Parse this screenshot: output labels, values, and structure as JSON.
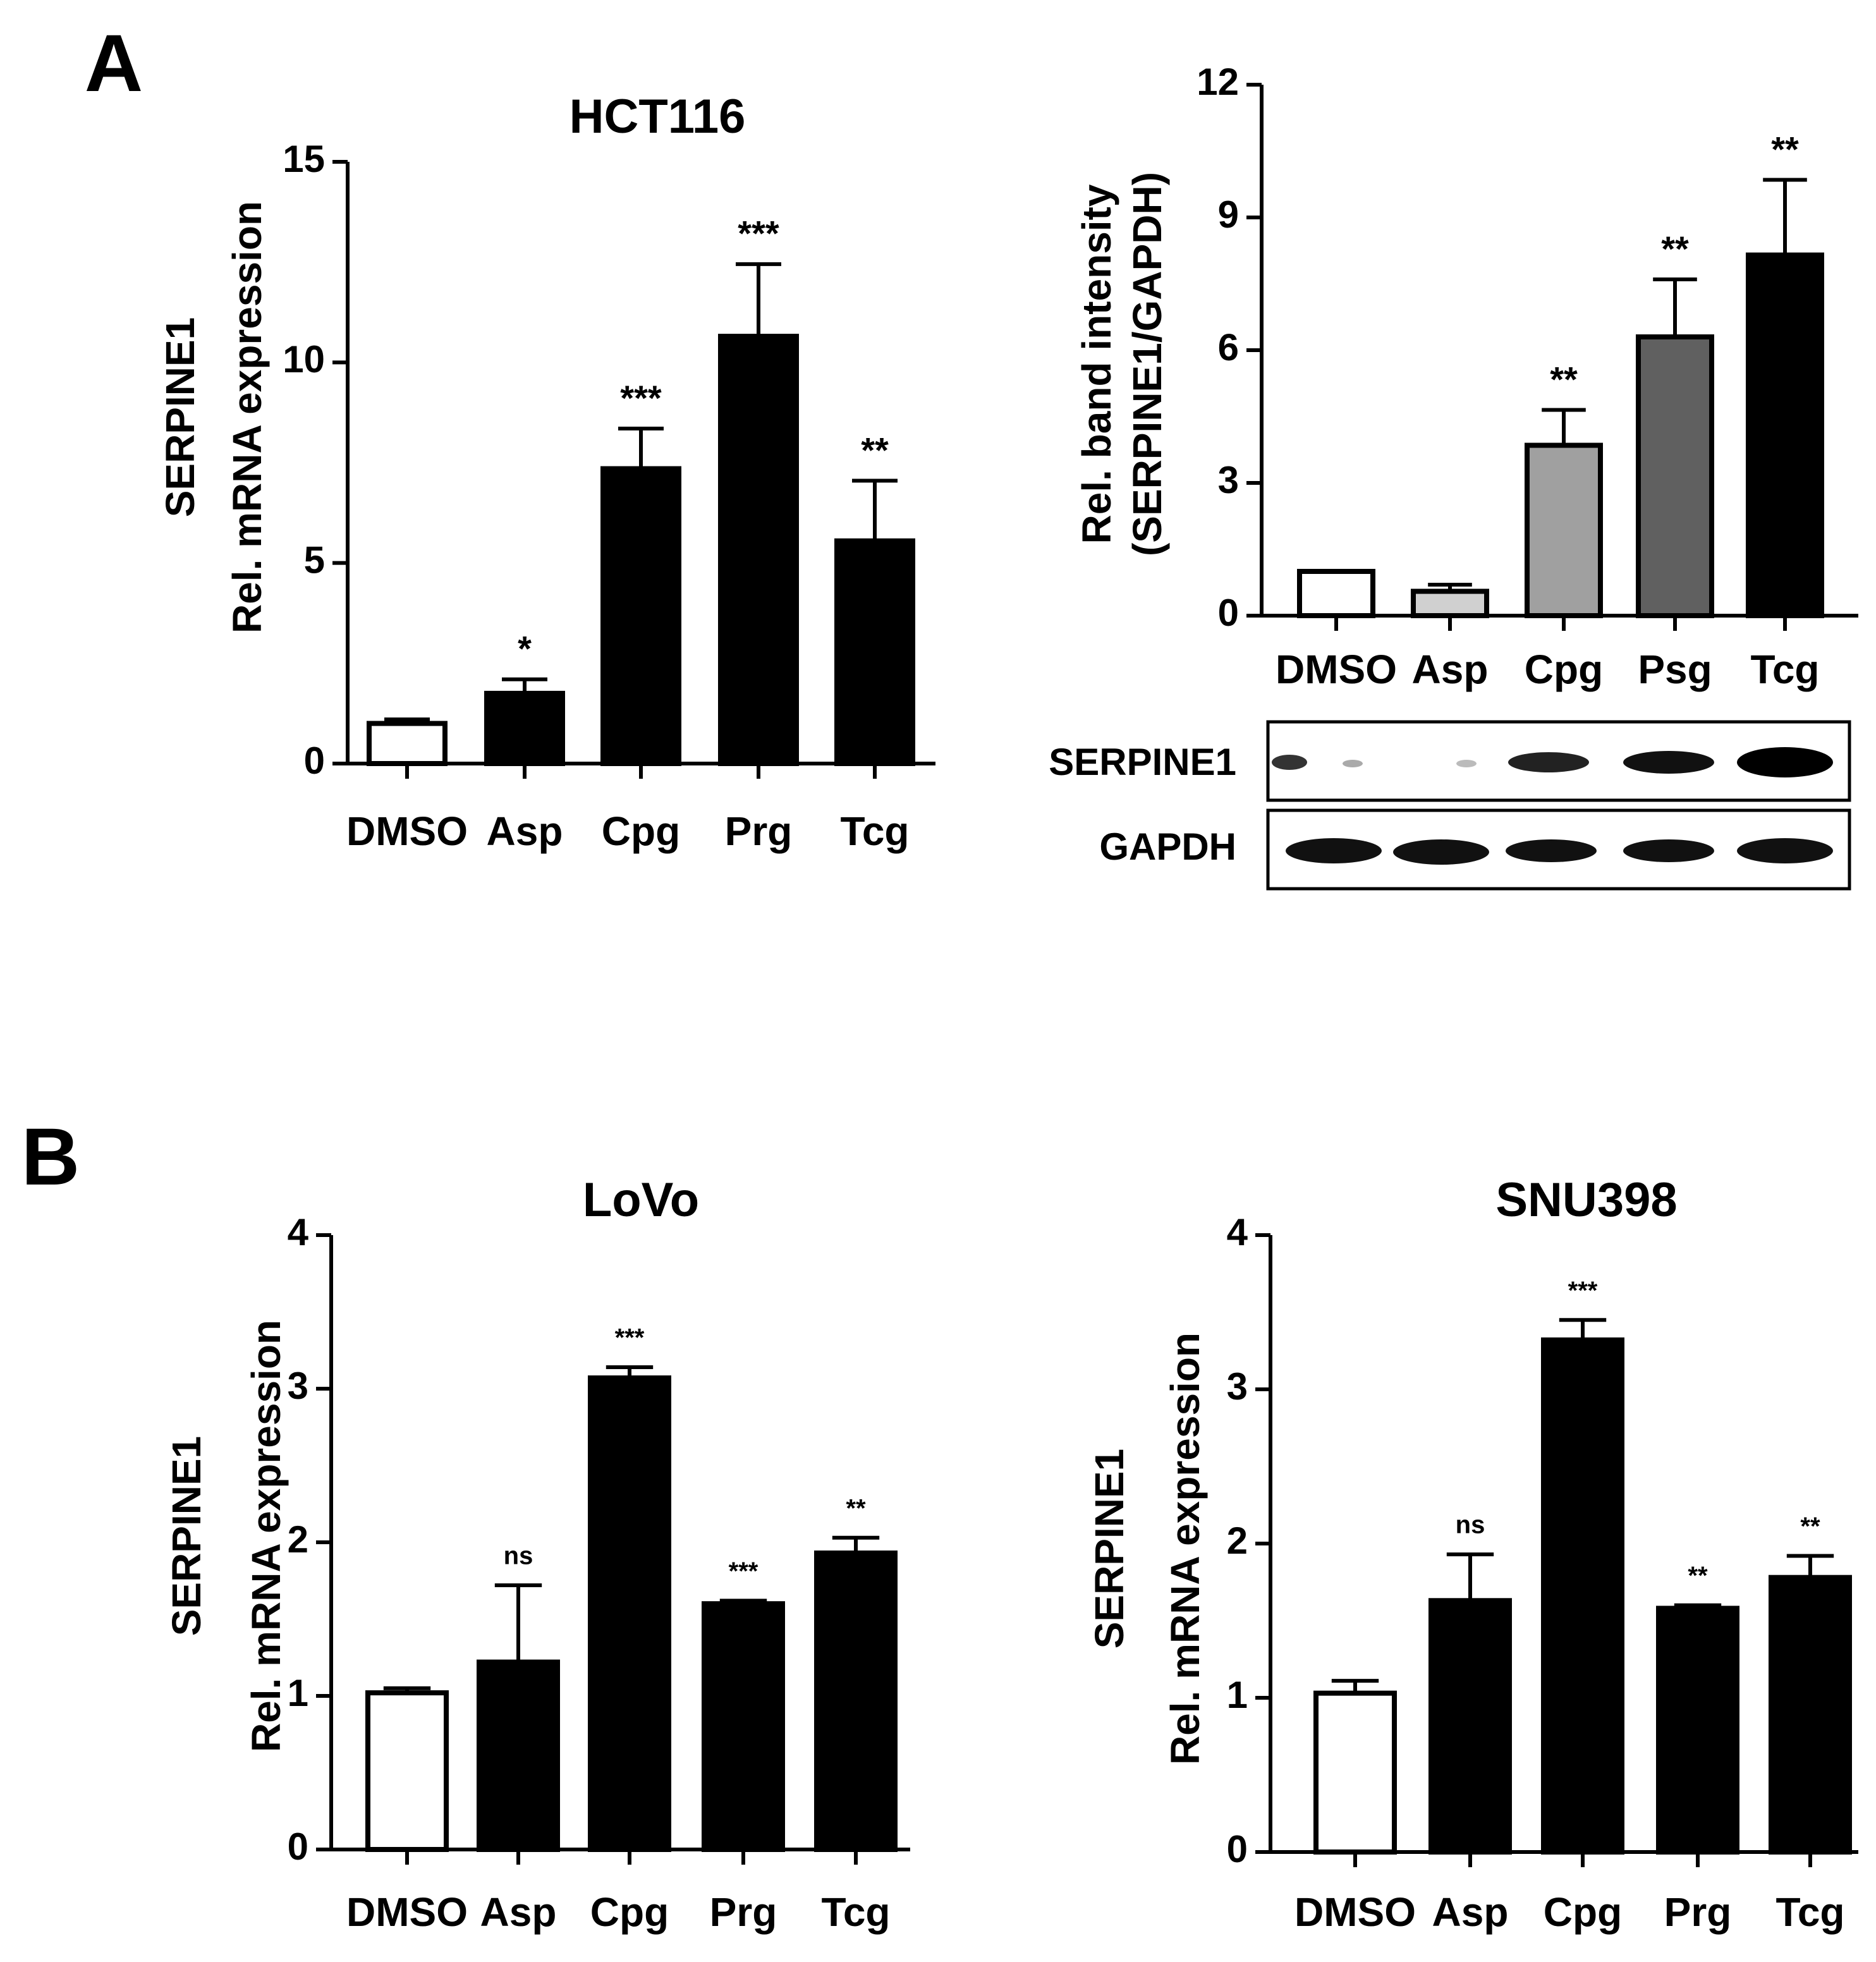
{
  "panels": [
    "A",
    "B"
  ],
  "blot_labels": [
    "SERPINE1",
    "GAPDH"
  ],
  "chart_data": [
    {
      "type": "bar",
      "title": "HCT116",
      "ylabel": [
        "SERPINE1",
        "Rel. mRNA expression"
      ],
      "categories": [
        "DMSO",
        "Asp",
        "Cpg",
        "Prg",
        "Tcg"
      ],
      "values": [
        1.0,
        1.75,
        7.35,
        10.65,
        5.55
      ],
      "errors": [
        0.1,
        0.35,
        1.0,
        1.8,
        1.5
      ],
      "annotations": [
        null,
        "*",
        "***",
        "***",
        "**"
      ],
      "colors": [
        "#ffffff",
        "#000000",
        "#000000",
        "#000000",
        "#000000"
      ],
      "ylim": [
        0,
        15
      ],
      "yticks": [
        0,
        5,
        10,
        15
      ],
      "grid": false
    },
    {
      "type": "bar",
      "ylabel": [
        "Rel. band intensity",
        "(SERPINE1/GAPDH)"
      ],
      "categories": [
        "DMSO",
        "Asp",
        "Cpg",
        "Psg",
        "Tcg"
      ],
      "values": [
        1.0,
        0.55,
        3.85,
        6.3,
        8.15
      ],
      "errors": [
        0.0,
        0.15,
        0.8,
        1.3,
        1.7
      ],
      "annotations": [
        null,
        null,
        "**",
        "**",
        "**"
      ],
      "colors": [
        "#ffffff",
        "#d0d0d0",
        "#a0a0a0",
        "#606060",
        "#000000"
      ],
      "ylim": [
        0,
        12
      ],
      "yticks": [
        0,
        3,
        6,
        9,
        12
      ],
      "grid": false
    },
    {
      "type": "bar",
      "title": "LoVo",
      "ylabel": [
        "SERPINE1",
        "Rel. mRNA expression"
      ],
      "categories": [
        "DMSO",
        "Asp",
        "Cpg",
        "Prg",
        "Tcg"
      ],
      "values": [
        1.02,
        1.22,
        3.07,
        1.6,
        1.93
      ],
      "errors": [
        0.03,
        0.5,
        0.07,
        0.02,
        0.1
      ],
      "annotations": [
        null,
        "ns",
        "***",
        "***",
        "**"
      ],
      "colors": [
        "#ffffff",
        "#000000",
        "#000000",
        "#000000",
        "#000000"
      ],
      "ylim": [
        0,
        4
      ],
      "yticks": [
        0,
        1,
        2,
        3,
        4
      ],
      "grid": false
    },
    {
      "type": "bar",
      "title": "SNU398",
      "ylabel": [
        "SERPINE1",
        "Rel. mRNA expression"
      ],
      "categories": [
        "DMSO",
        "Asp",
        "Cpg",
        "Prg",
        "Tcg"
      ],
      "values": [
        1.03,
        1.63,
        3.32,
        1.58,
        1.78
      ],
      "errors": [
        0.08,
        0.3,
        0.13,
        0.02,
        0.14
      ],
      "annotations": [
        null,
        "ns",
        "***",
        "**",
        "**"
      ],
      "colors": [
        "#ffffff",
        "#000000",
        "#000000",
        "#000000",
        "#000000"
      ],
      "ylim": [
        0,
        4
      ],
      "yticks": [
        0,
        1,
        2,
        3,
        4
      ],
      "grid": false
    }
  ]
}
